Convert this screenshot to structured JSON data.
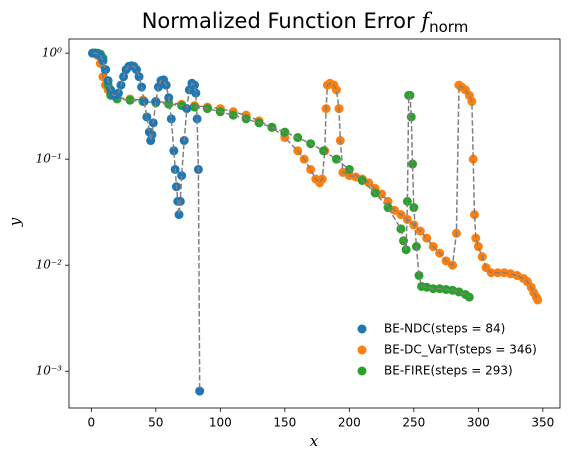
{
  "chart_data": {
    "type": "scatter",
    "title": "Normalized Function Error",
    "title_math": "f",
    "title_sub": "norm",
    "x_label": "x",
    "y_label": "y",
    "log_y": true,
    "legend": "lower right",
    "line_color": "#808080",
    "xlim": [
      -17.3,
      363.3
    ],
    "ylim": [
      0.00045,
      1.36
    ],
    "xticks": [
      0,
      50,
      100,
      150,
      200,
      250,
      300,
      350
    ],
    "yticks": [
      {
        "value": 1,
        "label": "10⁰"
      },
      {
        "value": 0.1,
        "label": "10⁻¹"
      },
      {
        "value": 0.01,
        "label": "10⁻²"
      },
      {
        "value": 0.001,
        "label": "10⁻³"
      }
    ],
    "series": [
      {
        "name": "BE-NDC(steps = 84)",
        "color": "#1f77b4",
        "x": [
          1,
          3,
          5,
          7,
          9,
          11,
          13,
          15,
          17,
          19,
          21,
          23,
          25,
          27,
          29,
          31,
          33,
          35,
          37,
          39,
          41,
          43,
          45,
          46,
          47,
          48,
          50,
          52,
          54,
          56,
          58,
          60,
          62,
          64,
          65,
          66,
          67,
          68,
          69,
          70,
          72,
          74,
          76,
          78,
          80,
          81,
          82,
          83,
          84
        ],
        "values": [
          1,
          1,
          0.98,
          0.95,
          0.85,
          0.7,
          0.55,
          0.45,
          0.4,
          0.4,
          0.42,
          0.5,
          0.6,
          0.7,
          0.75,
          0.76,
          0.75,
          0.7,
          0.6,
          0.48,
          0.35,
          0.25,
          0.18,
          0.15,
          0.17,
          0.22,
          0.35,
          0.48,
          0.55,
          0.56,
          0.5,
          0.38,
          0.24,
          0.12,
          0.08,
          0.055,
          0.04,
          0.03,
          0.04,
          0.07,
          0.15,
          0.3,
          0.45,
          0.52,
          0.5,
          0.42,
          0.24,
          0.08,
          0.00065
        ]
      },
      {
        "name": "BE-DC_VarT(steps = 346)",
        "color": "#ff7f0e",
        "x": [
          1,
          3,
          5,
          7,
          9,
          11,
          13,
          15,
          20,
          30,
          40,
          50,
          60,
          70,
          80,
          90,
          100,
          110,
          120,
          130,
          140,
          150,
          160,
          165,
          170,
          174,
          177,
          179,
          181,
          182,
          183,
          185,
          188,
          190,
          192,
          193,
          195,
          200,
          205,
          210,
          215,
          220,
          225,
          230,
          235,
          240,
          245,
          250,
          255,
          260,
          265,
          270,
          275,
          280,
          283,
          285,
          287,
          290,
          293,
          295,
          296,
          297,
          298,
          300,
          303,
          306,
          310,
          315,
          320,
          325,
          330,
          335,
          338,
          341,
          343,
          345,
          346
        ],
        "values": [
          1,
          1,
          0.95,
          0.8,
          0.6,
          0.5,
          0.45,
          0.42,
          0.38,
          0.37,
          0.36,
          0.35,
          0.34,
          0.33,
          0.32,
          0.31,
          0.3,
          0.28,
          0.26,
          0.23,
          0.2,
          0.16,
          0.12,
          0.1,
          0.08,
          0.065,
          0.06,
          0.065,
          0.12,
          0.3,
          0.5,
          0.52,
          0.5,
          0.45,
          0.3,
          0.15,
          0.075,
          0.07,
          0.068,
          0.065,
          0.06,
          0.053,
          0.047,
          0.04,
          0.033,
          0.03,
          0.027,
          0.024,
          0.021,
          0.018,
          0.015,
          0.013,
          0.011,
          0.01,
          0.02,
          0.5,
          0.48,
          0.45,
          0.4,
          0.35,
          0.1,
          0.03,
          0.018,
          0.015,
          0.012,
          0.0095,
          0.0085,
          0.0085,
          0.0085,
          0.0083,
          0.008,
          0.0075,
          0.007,
          0.0062,
          0.0055,
          0.005,
          0.0047
        ]
      },
      {
        "name": "BE-FIRE(steps = 293)",
        "color": "#2ca02c",
        "x": [
          1,
          3,
          5,
          7,
          9,
          11,
          13,
          15,
          20,
          30,
          40,
          50,
          60,
          70,
          80,
          90,
          100,
          110,
          120,
          130,
          140,
          150,
          160,
          170,
          180,
          190,
          200,
          210,
          220,
          230,
          240,
          242,
          244,
          245,
          246,
          247,
          248,
          249,
          250,
          252,
          254,
          256,
          260,
          265,
          270,
          275,
          280,
          285,
          290,
          293
        ],
        "values": [
          1,
          1,
          1,
          0.98,
          0.9,
          0.7,
          0.5,
          0.4,
          0.37,
          0.36,
          0.35,
          0.34,
          0.33,
          0.32,
          0.31,
          0.3,
          0.28,
          0.26,
          0.24,
          0.22,
          0.2,
          0.18,
          0.16,
          0.14,
          0.12,
          0.1,
          0.08,
          0.063,
          0.048,
          0.035,
          0.022,
          0.017,
          0.014,
          0.04,
          0.4,
          0.4,
          0.25,
          0.09,
          0.035,
          0.015,
          0.008,
          0.0063,
          0.0062,
          0.006,
          0.006,
          0.0059,
          0.0058,
          0.0056,
          0.0053,
          0.005
        ]
      }
    ]
  }
}
